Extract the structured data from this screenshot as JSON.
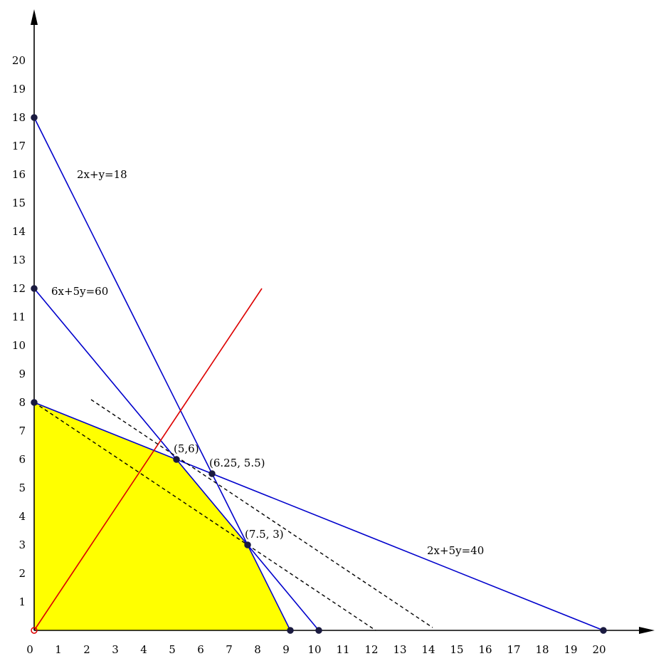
{
  "chart_data": {
    "type": "line",
    "title": "",
    "xlabel": "",
    "ylabel": "",
    "xlim": [
      0,
      21.5
    ],
    "ylim": [
      0,
      21.8
    ],
    "x_ticks": [
      0,
      1,
      2,
      3,
      4,
      5,
      6,
      7,
      8,
      9,
      10,
      11,
      12,
      13,
      14,
      15,
      16,
      17,
      18,
      19,
      20
    ],
    "y_ticks": [
      1,
      2,
      3,
      4,
      5,
      6,
      7,
      8,
      9,
      10,
      11,
      12,
      13,
      14,
      15,
      16,
      17,
      18,
      19,
      20
    ],
    "feasible_region": {
      "color": "#ffff00",
      "vertices": [
        [
          0,
          0
        ],
        [
          0,
          8
        ],
        [
          5,
          6
        ],
        [
          7.5,
          3
        ],
        [
          9,
          0
        ]
      ]
    },
    "lines": [
      {
        "name": "2x+y=18",
        "points": [
          [
            0,
            18
          ],
          [
            9,
            0
          ]
        ],
        "color": "#0000cc",
        "label_at": [
          1.5,
          16
        ]
      },
      {
        "name": "6x+5y=60",
        "points": [
          [
            0,
            12
          ],
          [
            10,
            0
          ]
        ],
        "color": "#0000cc",
        "label_at": [
          0.6,
          11.9
        ]
      },
      {
        "name": "2x+5y=40",
        "points": [
          [
            0,
            8
          ],
          [
            20,
            0
          ]
        ],
        "color": "#0000cc",
        "label_at": [
          13.8,
          2.8
        ]
      },
      {
        "name": "",
        "points": [
          [
            0,
            0
          ],
          [
            8,
            12
          ]
        ],
        "color": "#dd0000",
        "label_at": null
      },
      {
        "name": "",
        "points": [
          [
            0,
            8
          ],
          [
            12,
            0
          ]
        ],
        "color": "#000000",
        "dashed": true,
        "label_at": null
      },
      {
        "name": "",
        "points": [
          [
            2,
            8.1
          ],
          [
            14,
            0.1
          ]
        ],
        "color": "#000000",
        "dashed": true,
        "label_at": null
      }
    ],
    "points": [
      {
        "x": 0,
        "y": 18,
        "label": ""
      },
      {
        "x": 0,
        "y": 12,
        "label": ""
      },
      {
        "x": 0,
        "y": 8,
        "label": ""
      },
      {
        "x": 0,
        "y": 0,
        "label": ""
      },
      {
        "x": 9,
        "y": 0,
        "label": ""
      },
      {
        "x": 10,
        "y": 0,
        "label": ""
      },
      {
        "x": 20,
        "y": 0,
        "label": ""
      },
      {
        "x": 5,
        "y": 6,
        "label": "(5,6)"
      },
      {
        "x": 6.25,
        "y": 5.5,
        "label": "(6.25, 5.5)"
      },
      {
        "x": 7.5,
        "y": 3,
        "label": "(7.5, 3)"
      }
    ],
    "colors": {
      "axes": "#000000",
      "constraint": "#0000cc",
      "objective": "#dd0000",
      "region": "#ffff00",
      "point": "#1a1a40"
    }
  }
}
